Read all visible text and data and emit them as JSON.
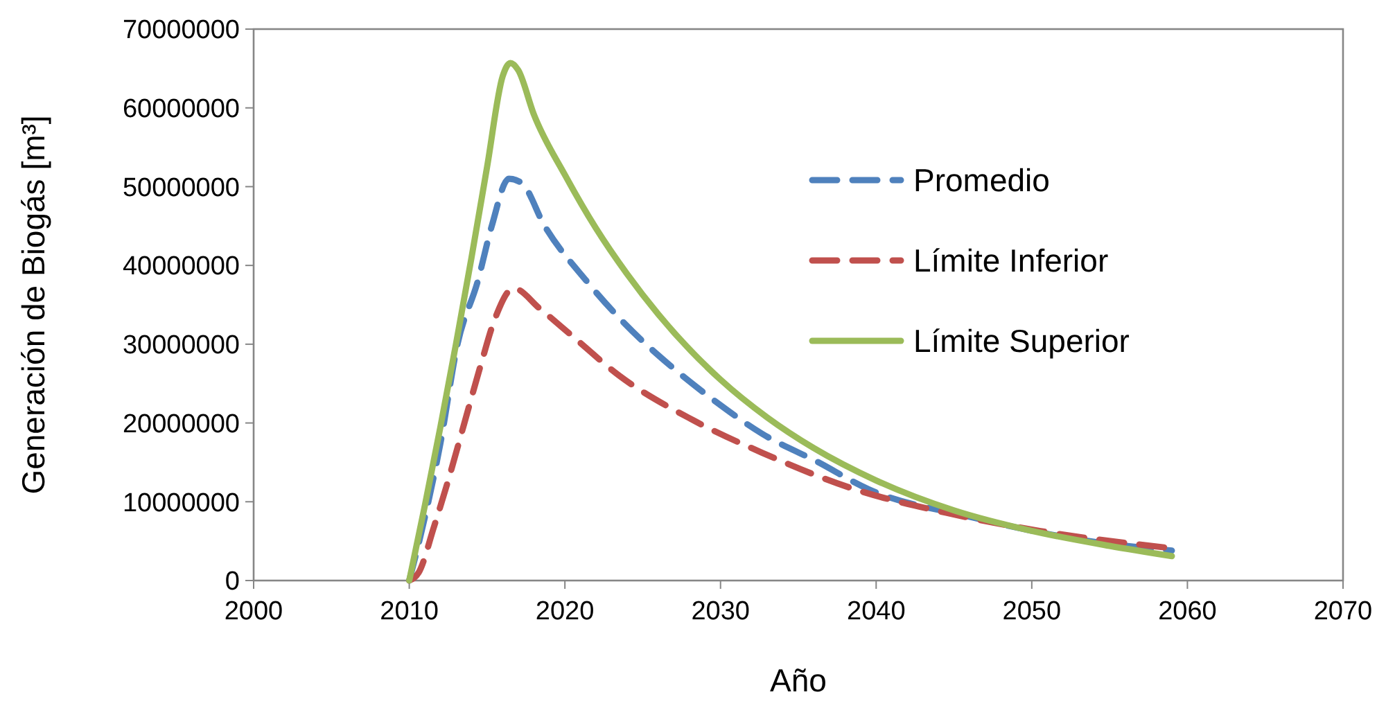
{
  "chart_data": {
    "type": "line",
    "xlabel": "Año",
    "ylabel": "Generación de Biogás [m³]",
    "xlim": [
      2000,
      2070
    ],
    "xticks": [
      2000,
      2010,
      2020,
      2030,
      2040,
      2050,
      2060,
      2070
    ],
    "ylim": [
      0,
      70000000
    ],
    "yticks": [
      0,
      10000000,
      20000000,
      30000000,
      40000000,
      50000000,
      60000000,
      70000000
    ],
    "grid": false,
    "legend": "right",
    "series": [
      {
        "name": "Promedio",
        "color": "#4f81bd",
        "line_style": "dashed",
        "x": [
          2010,
          2011,
          2012,
          2013.1,
          2014.4,
          2015.3,
          2016.4,
          2017.2,
          2018.7,
          2021.4,
          2023.8,
          2026.7,
          2029.7,
          2032.7,
          2036.2,
          2039.5,
          2046,
          2053.4,
          2059
        ],
        "values": [
          0,
          8000000,
          17400000,
          30000000,
          38000000,
          45000000,
          51000000,
          50500000,
          45000000,
          38000000,
          32700000,
          27400000,
          22700000,
          18600000,
          15100000,
          11600000,
          8100000,
          5100000,
          3800000
        ]
      },
      {
        "name": "Límite Inferior",
        "color": "#c0504d",
        "line_style": "dashed",
        "x": [
          2010,
          2010.6,
          2011.6,
          2012.5,
          2013.5,
          2014.6,
          2015.5,
          2016.7,
          2018.4,
          2020.5,
          2023.5,
          2028.2,
          2032.7,
          2038.6,
          2044.5,
          2050.5,
          2059
        ],
        "values": [
          0,
          1000000,
          6900000,
          12700000,
          19700000,
          27400000,
          33200000,
          37100000,
          34500000,
          31000000,
          26000000,
          20400000,
          16200000,
          11600000,
          8600000,
          6300000,
          4100000
        ]
      },
      {
        "name": "Límite Superior",
        "color": "#9bbb59",
        "line_style": "solid",
        "x": [
          2010,
          2011,
          2012,
          2013,
          2014,
          2015,
          2016,
          2016.5,
          2017,
          2018,
          2020,
          2022,
          2024,
          2026,
          2030,
          2033,
          2036,
          2040,
          2045,
          2050,
          2055,
          2059
        ],
        "values": [
          0,
          9500000,
          19500000,
          30000000,
          41000000,
          52500000,
          64000000,
          65700000,
          64800000,
          59200000,
          51500000,
          44700000,
          38900000,
          33800000,
          25500000,
          20700000,
          16800000,
          12700000,
          8900000,
          6300000,
          4400000,
          3100000
        ]
      }
    ]
  }
}
